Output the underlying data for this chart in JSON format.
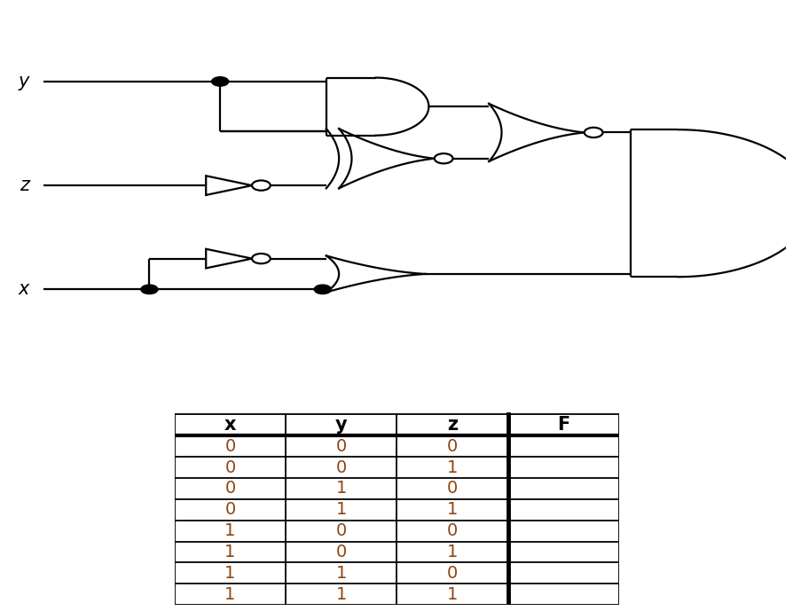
{
  "background_color": "#ffffff",
  "table": {
    "headers": [
      "x",
      "y",
      "z",
      "F"
    ],
    "rows": [
      [
        "0",
        "0",
        "0",
        ""
      ],
      [
        "0",
        "0",
        "1",
        ""
      ],
      [
        "0",
        "1",
        "0",
        ""
      ],
      [
        "0",
        "1",
        "1",
        ""
      ],
      [
        "1",
        "0",
        "0",
        ""
      ],
      [
        "1",
        "0",
        "1",
        ""
      ],
      [
        "1",
        "1",
        "0",
        ""
      ],
      [
        "1",
        "1",
        "1",
        ""
      ]
    ],
    "text_color": "#8B4513",
    "header_color": "#000000"
  },
  "lw": 1.6
}
